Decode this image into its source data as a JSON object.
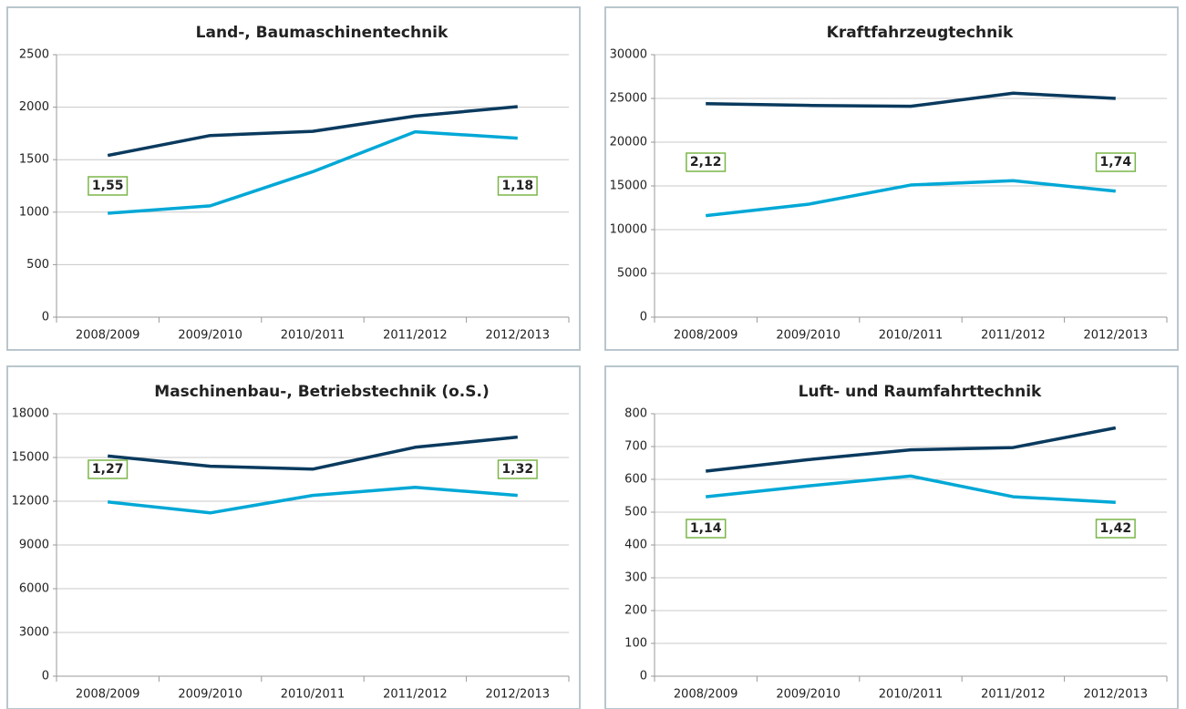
{
  "chart_data": [
    {
      "type": "line",
      "title": "Land-, Baumaschinentechnik",
      "categories": [
        "2008/2009",
        "2009/2010",
        "2010/2011",
        "2011/2012",
        "2012/2013"
      ],
      "series": [
        {
          "color": "#0a3a5e",
          "values": [
            1540,
            1730,
            1770,
            1915,
            2005
          ]
        },
        {
          "color": "#00a8d6",
          "values": [
            990,
            1060,
            1385,
            1765,
            1705
          ]
        }
      ],
      "ylim": [
        0,
        2500
      ],
      "yticks": [
        0,
        500,
        1000,
        1500,
        2000,
        2500
      ],
      "grid": true,
      "annotations": [
        "1,55",
        "1,18"
      ]
    },
    {
      "type": "line",
      "title": "Kraftfahrzeugtechnik",
      "categories": [
        "2008/2009",
        "2009/2010",
        "2010/2011",
        "2011/2012",
        "2012/2013"
      ],
      "series": [
        {
          "color": "#0a3a5e",
          "values": [
            24400,
            24200,
            24100,
            25600,
            25000
          ]
        },
        {
          "color": "#00a8d6",
          "values": [
            11600,
            12900,
            15100,
            15600,
            14400
          ]
        }
      ],
      "ylim": [
        0,
        30000
      ],
      "yticks": [
        0,
        5000,
        10000,
        15000,
        20000,
        25000,
        30000
      ],
      "grid": true,
      "annotations": [
        "2,12",
        "1,74"
      ]
    },
    {
      "type": "line",
      "title": "Maschinenbau-, Betriebstechnik (o.S.)",
      "categories": [
        "2008/2009",
        "2009/2010",
        "2010/2011",
        "2011/2012",
        "2012/2013"
      ],
      "series": [
        {
          "color": "#0a3a5e",
          "values": [
            15100,
            14400,
            14200,
            15700,
            16400
          ]
        },
        {
          "color": "#00a8d6",
          "values": [
            11950,
            11200,
            12400,
            12950,
            12400
          ]
        }
      ],
      "ylim": [
        0,
        18000
      ],
      "yticks": [
        0,
        3000,
        6000,
        9000,
        12000,
        15000,
        18000
      ],
      "grid": true,
      "annotations": [
        "1,27",
        "1,32"
      ]
    },
    {
      "type": "line",
      "title": "Luft- und Raumfahrttechnik",
      "categories": [
        "2008/2009",
        "2009/2010",
        "2010/2011",
        "2011/2012",
        "2012/2013"
      ],
      "series": [
        {
          "color": "#0a3a5e",
          "values": [
            625,
            660,
            690,
            697,
            757
          ]
        },
        {
          "color": "#00a8d6",
          "values": [
            547,
            580,
            610,
            547,
            530
          ]
        }
      ],
      "ylim": [
        0,
        800
      ],
      "yticks": [
        0,
        100,
        200,
        300,
        400,
        500,
        600,
        700,
        800
      ],
      "grid": true,
      "annotations": [
        "1,14",
        "1,42"
      ]
    }
  ]
}
